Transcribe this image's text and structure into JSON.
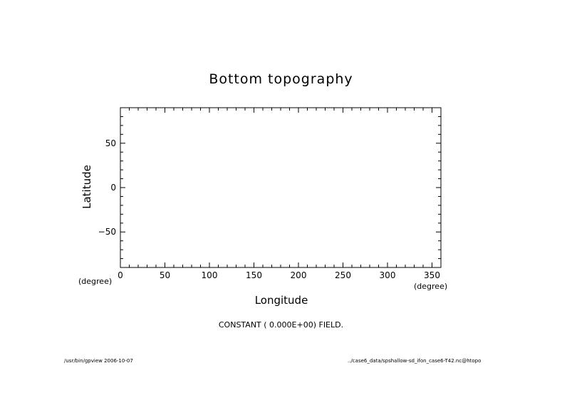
{
  "chart_data": {
    "type": "heatmap",
    "title": "Bottom topography",
    "xlabel": "Longitude",
    "ylabel": "Latitude",
    "x_unit": "(degree)",
    "y_unit": "(degree)",
    "xlim": [
      0,
      360
    ],
    "ylim": [
      -90,
      90
    ],
    "x_ticks": [
      0,
      50,
      100,
      150,
      200,
      250,
      300,
      350
    ],
    "y_ticks": [
      -50,
      0,
      50
    ],
    "x_minor_step": 10,
    "y_minor_step": 10,
    "grid": false,
    "field_note": "CONSTANT ( 0.000E+00) FIELD."
  },
  "footer": {
    "left": "/usr/bin/gpview  2006-10-07",
    "right": "../case6_data/spshallow-sd_ifon_case6-T42.nc@htopo"
  }
}
